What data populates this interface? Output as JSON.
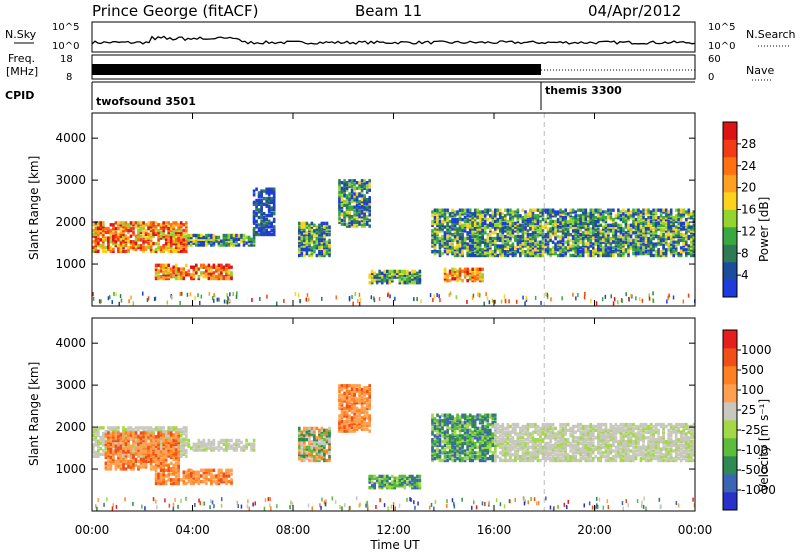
{
  "header": {
    "title": "Prince George (fitACF)",
    "beam": "Beam 11",
    "date": "04/Apr/2012"
  },
  "top_panels": {
    "nsky_label": "N.Sky",
    "nsky_ticks": [
      "10^5",
      "10^0"
    ],
    "nsearch_label": "N.Search",
    "nsearch_ticks": [
      "10^5",
      "10^0"
    ],
    "freq_label_1": "Freq.",
    "freq_label_2": "[MHz]",
    "freq_ticks": [
      "18",
      "8"
    ],
    "nave_label": "Nave",
    "nave_ticks": [
      "60",
      "0"
    ],
    "cpid_label": "CPID",
    "cpid_segments": [
      {
        "name": "twofsound 3501",
        "start_hour": 0,
        "end_hour": 18
      },
      {
        "name": "themis 3300",
        "start_hour": 18,
        "end_hour": 24
      }
    ]
  },
  "chart_data": [
    {
      "type": "heatmap",
      "name": "power",
      "ylabel": "Slant Range [km]",
      "ylim": [
        0,
        4600
      ],
      "yticks": [
        "4000",
        "3000",
        "2000",
        "1000"
      ],
      "xlim": [
        "00:00",
        "24:00"
      ],
      "colorbar": {
        "label": "Power [dB]",
        "ticks": [
          "28",
          "24",
          "20",
          "16",
          "12",
          "8",
          "4"
        ],
        "colors": [
          "#1e3cdc",
          "#1c4c9c",
          "#2e7a55",
          "#3aa840",
          "#93d42e",
          "#ffd21e",
          "#ffa020",
          "#ff7010",
          "#f43c14",
          "#dc1414"
        ]
      },
      "echo_regions": [
        {
          "t0": 0.0,
          "t1": 3.8,
          "r0": 1300,
          "r1": 2000,
          "level": "high"
        },
        {
          "t0": 2.5,
          "t1": 5.5,
          "r0": 650,
          "r1": 1000,
          "level": "high"
        },
        {
          "t0": 3.8,
          "t1": 6.4,
          "r0": 1450,
          "r1": 1700,
          "level": "mid"
        },
        {
          "t0": 6.4,
          "t1": 7.2,
          "r0": 1700,
          "r1": 2800,
          "level": "low"
        },
        {
          "t0": 8.2,
          "t1": 9.4,
          "r0": 1200,
          "r1": 2000,
          "level": "mid"
        },
        {
          "t0": 9.8,
          "t1": 11.0,
          "r0": 1900,
          "r1": 3000,
          "level": "mid"
        },
        {
          "t0": 11.0,
          "t1": 13.0,
          "r0": 550,
          "r1": 850,
          "level": "mid"
        },
        {
          "t0": 13.5,
          "t1": 24.0,
          "r0": 1200,
          "r1": 2300,
          "level": "mid"
        },
        {
          "t0": 14.0,
          "t1": 15.5,
          "r0": 600,
          "r1": 900,
          "level": "high"
        }
      ]
    },
    {
      "type": "heatmap",
      "name": "velocity",
      "ylabel": "Slant Range [km]",
      "ylim": [
        0,
        4600
      ],
      "yticks": [
        "4000",
        "3000",
        "2000",
        "1000"
      ],
      "xlim": [
        "00:00",
        "24:00"
      ],
      "colorbar": {
        "label": "Velocity [m s⁻¹]",
        "ticks": [
          "1000",
          "500",
          "100",
          "25",
          "-25",
          "-100",
          "-500",
          "-1000"
        ],
        "colors": [
          "#2832c8",
          "#3c64b4",
          "#2e8a50",
          "#5cbc3c",
          "#a4d846",
          "#c8c8be",
          "#ffa050",
          "#ff8020",
          "#f05018",
          "#e61e1e"
        ]
      },
      "echo_regions": [
        {
          "t0": 0.0,
          "t1": 3.8,
          "r0": 1300,
          "r1": 2000,
          "level": "ground"
        },
        {
          "t0": 0.5,
          "t1": 3.5,
          "r0": 1000,
          "r1": 1900,
          "level": "away"
        },
        {
          "t0": 2.5,
          "t1": 5.5,
          "r0": 650,
          "r1": 1000,
          "level": "away"
        },
        {
          "t0": 3.8,
          "t1": 6.4,
          "r0": 1450,
          "r1": 1700,
          "level": "ground"
        },
        {
          "t0": 8.2,
          "t1": 9.4,
          "r0": 1200,
          "r1": 2000,
          "level": "mixed"
        },
        {
          "t0": 9.8,
          "t1": 11.0,
          "r0": 1900,
          "r1": 3000,
          "level": "away"
        },
        {
          "t0": 11.0,
          "t1": 13.0,
          "r0": 550,
          "r1": 850,
          "level": "toward"
        },
        {
          "t0": 13.5,
          "t1": 16.0,
          "r0": 1200,
          "r1": 2300,
          "level": "toward"
        },
        {
          "t0": 16.0,
          "t1": 24.0,
          "r0": 1200,
          "r1": 2100,
          "level": "ground"
        }
      ]
    }
  ],
  "x_axis": {
    "ticks": [
      "00:00",
      "04:00",
      "08:00",
      "12:00",
      "16:00",
      "20:00",
      "00:00"
    ],
    "label": "Time UT"
  }
}
